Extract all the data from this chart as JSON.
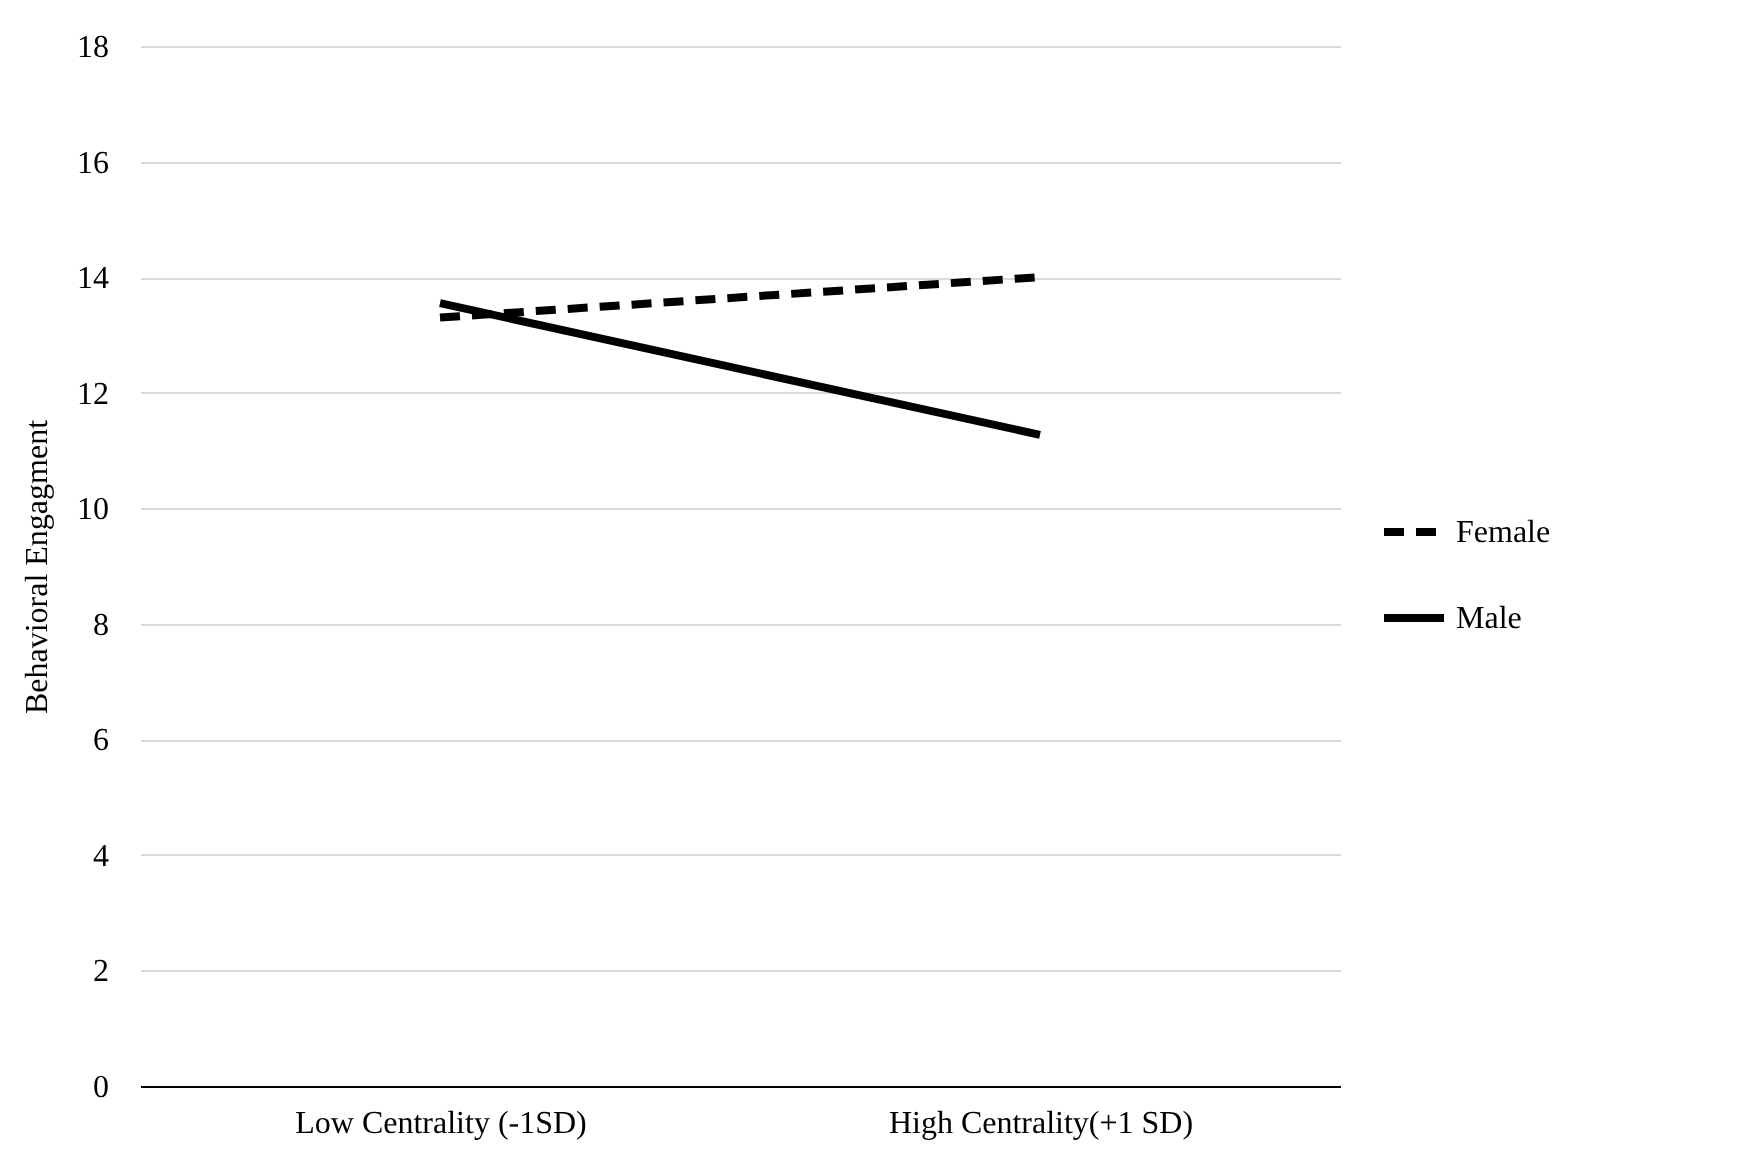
{
  "chart_data": {
    "type": "line",
    "ylabel": "Behavioral Engagment",
    "categories": [
      "Low Centrality (-1SD)",
      "High Centrality(+1 SD)"
    ],
    "series": [
      {
        "name": "Female",
        "color": "#000000",
        "values": [
          13.3,
          14.0
        ],
        "line_style": "dashed"
      },
      {
        "name": "Male",
        "color": "#000000",
        "values": [
          13.55,
          11.27
        ],
        "line_style": "solid"
      }
    ],
    "ylim": [
      0,
      18
    ],
    "yticks": [
      0,
      2,
      4,
      6,
      8,
      10,
      12,
      14,
      16,
      18
    ],
    "grid": "y",
    "legend": "right",
    "marker": "none"
  }
}
